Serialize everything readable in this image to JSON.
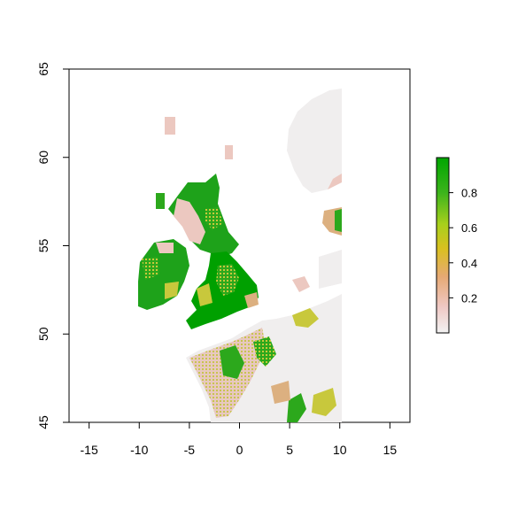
{
  "map": {
    "type": "raster-suitability-map",
    "region": "British Isles and north-western Europe",
    "x_ticks": [
      "-15",
      "-10",
      "-5",
      "0",
      "5",
      "10",
      "15"
    ],
    "y_ticks": [
      "45",
      "50",
      "55",
      "60",
      "65"
    ],
    "xlim": [
      -17,
      17
    ],
    "ylim": [
      45,
      65
    ],
    "legend": {
      "ticks": [
        "0.2",
        "0.4",
        "0.6",
        "0.8"
      ],
      "range": [
        0,
        1
      ],
      "colors": [
        "#f2f2f2",
        "#efc8c4",
        "#e6a974",
        "#d9c020",
        "#a8d01c",
        "#3cb41c",
        "#00a600"
      ]
    },
    "colors": {
      "no_data_land": "#f0eeee",
      "low": "#ecc8c0",
      "mid_low": "#dcb080",
      "mid": "#c8c83c",
      "high": "#2ca81c",
      "very_high": "#00a000"
    }
  }
}
